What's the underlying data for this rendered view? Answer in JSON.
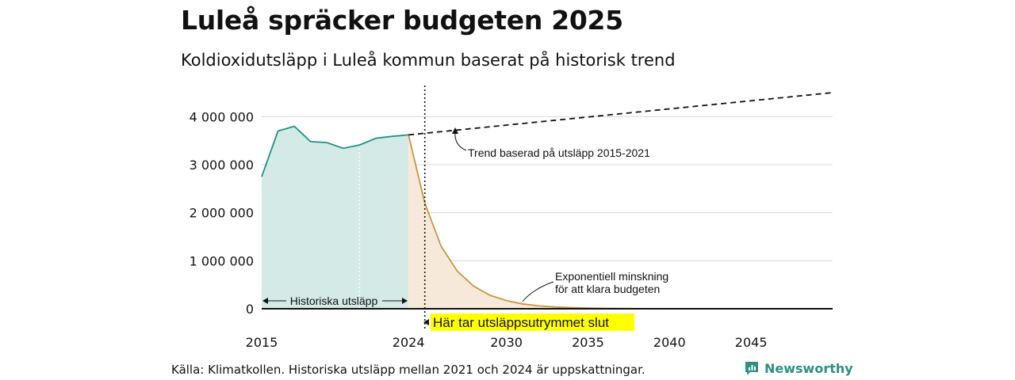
{
  "title": "Luleå spräcker budgeten 2025",
  "subtitle": "Koldioxidutsläpp i Luleå kommun baserat på historisk trend",
  "source": "Källa: Klimatkollen. Historiska utsläpp mellan 2021 och 2024 är uppskattningar.",
  "brand": {
    "name": "Newsworthy",
    "icon": "newsworthy-logo-icon",
    "color": "#2e8f86"
  },
  "chart_data": {
    "type": "area",
    "title": "Luleå spräcker budgeten 2025",
    "subtitle": "Koldioxidutsläpp i Luleå kommun baserat på historisk trend",
    "xlabel": "",
    "ylabel": "",
    "xlim": [
      2015,
      2050
    ],
    "ylim": [
      0,
      4500000
    ],
    "grid": "horizontal",
    "y_ticks": [
      0,
      1000000,
      2000000,
      3000000,
      4000000
    ],
    "y_tick_labels": [
      "0",
      "1 000 000",
      "2 000 000",
      "3 000 000",
      "4 000 000"
    ],
    "x_ticks": [
      2015,
      2024,
      2030,
      2035,
      2040,
      2045
    ],
    "x_tick_labels": [
      "2015",
      "2024",
      "2030",
      "2035",
      "2040",
      "2045"
    ],
    "series": [
      {
        "name": "Historiska utsläpp",
        "style": "area",
        "color": "#1f9287",
        "fill": "#d3eae6",
        "x": [
          2015,
          2016,
          2017,
          2018,
          2019,
          2020,
          2021,
          2022,
          2023,
          2024
        ],
        "y": [
          2750000,
          3700000,
          3800000,
          3480000,
          3460000,
          3340000,
          3410000,
          3550000,
          3590000,
          3620000
        ]
      },
      {
        "name": "Exponentiell minskning för att klara budgeten",
        "style": "area",
        "color": "#c9963a",
        "fill": "#f7e9da",
        "x": [
          2024,
          2025,
          2026,
          2027,
          2028,
          2029,
          2030,
          2031,
          2032,
          2033,
          2034,
          2035,
          2036,
          2037,
          2038,
          2040,
          2045,
          2050
        ],
        "y": [
          3620000,
          2200000,
          1300000,
          780000,
          470000,
          280000,
          170000,
          100000,
          60000,
          36000,
          22000,
          13000,
          8000,
          5000,
          3000,
          1000,
          0,
          0
        ]
      },
      {
        "name": "Trend baserad på utsläpp 2015-2021",
        "style": "dashed",
        "color": "#111111",
        "x": [
          2024,
          2050
        ],
        "y": [
          3620000,
          4500000
        ]
      }
    ],
    "annotations": {
      "trend": "Trend baserad på utsläpp 2015-2021",
      "decline_line1": "Exponentiell minskning",
      "decline_line2": "för att klara budgeten",
      "historical": "Historiska utsläpp",
      "budget_end": "Här tar utsläppsutrymmet slut",
      "budget_end_color": "#ffff00"
    },
    "vertical_marker_x": 2025
  }
}
